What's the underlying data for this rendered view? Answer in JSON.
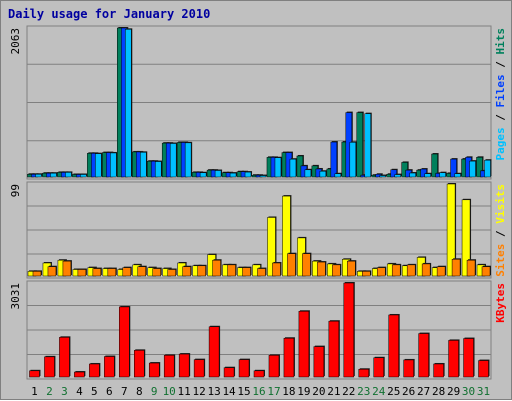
{
  "chart_data": {
    "type": "bar",
    "title": "Daily usage for January 2010",
    "categories": [
      "1",
      "2",
      "3",
      "4",
      "5",
      "6",
      "7",
      "8",
      "9",
      "10",
      "11",
      "12",
      "13",
      "14",
      "15",
      "16",
      "17",
      "18",
      "19",
      "20",
      "21",
      "22",
      "23",
      "24",
      "25",
      "26",
      "27",
      "28",
      "29",
      "30",
      "31"
    ],
    "weekend_days": [
      "2",
      "3",
      "9",
      "10",
      "16",
      "17",
      "23",
      "24",
      "30",
      "31"
    ],
    "colors": {
      "background": "#c0c0c0",
      "grid": "#808080",
      "title": "#0000a0",
      "weekday_label": "#000000",
      "weekend_label": "#107030",
      "hits": "#00805c",
      "files": "#0040ff",
      "pages": "#00c0ff",
      "visits": "#ffff00",
      "sites": "#ff8000",
      "kbytes": "#ff0000"
    },
    "panels": [
      {
        "id": "hits-files-pages",
        "max_label": "2063",
        "ylim": [
          0,
          2063
        ],
        "legend": [
          {
            "text": "Pages",
            "color": "#00c0ff"
          },
          {
            "text": " / ",
            "color": "#000000"
          },
          {
            "text": "Files",
            "color": "#0040ff"
          },
          {
            "text": " / ",
            "color": "#000000"
          },
          {
            "text": "Hits",
            "color": "#00805c"
          }
        ],
        "series": [
          {
            "name": "Hits",
            "color": "#00805c",
            "values": [
              38,
              53,
              64,
              35,
              328,
              338,
              2063,
              347,
              219,
              469,
              478,
              64,
              95,
              59,
              73,
              25,
              272,
              338,
              291,
              154,
              111,
              484,
              892,
              25,
              38,
              202,
              95,
              318,
              50,
              248,
              273
            ]
          },
          {
            "name": "Files",
            "color": "#0040ff",
            "values": [
              38,
              53,
              64,
              35,
              328,
              338,
              2063,
              347,
              219,
              469,
              478,
              64,
              95,
              59,
              73,
              25,
              272,
              338,
              154,
              111,
              484,
              892,
              25,
              38,
              100,
              95,
              110,
              50,
              248,
              273,
              85
            ]
          },
          {
            "name": "Pages",
            "color": "#00c0ff",
            "values": [
              38,
              53,
              64,
              35,
              323,
              333,
              2045,
              342,
              214,
              464,
              473,
              59,
              90,
              54,
              68,
              20,
              267,
              247,
              100,
              80,
              45,
              480,
              877,
              20,
              33,
              55,
              45,
              60,
              45,
              220,
              233
            ]
          }
        ]
      },
      {
        "id": "visits-sites",
        "max_label": "99",
        "ylim": [
          0,
          99
        ],
        "legend": [
          {
            "text": "Sites",
            "color": "#ff8000"
          },
          {
            "text": " / ",
            "color": "#000000"
          },
          {
            "text": "Visits",
            "color": "#ffff00"
          }
        ],
        "series": [
          {
            "name": "Visits",
            "color": "#ffff00",
            "values": [
              5,
              14,
              17,
              7,
              9,
              8,
              7,
              12,
              9,
              8,
              14,
              11,
              23,
              12,
              9,
              12,
              63,
              86,
              41,
              16,
              13,
              18,
              5,
              8,
              13,
              11,
              20,
              9,
              99,
              82,
              12
            ]
          },
          {
            "name": "Sites",
            "color": "#ff8000",
            "values": [
              5,
              10,
              16,
              7,
              8,
              8,
              9,
              10,
              8,
              7,
              10,
              11,
              17,
              12,
              9,
              8,
              14,
              24,
              24,
              15,
              12,
              16,
              5,
              9,
              12,
              12,
              13,
              10,
              18,
              17,
              10
            ]
          }
        ]
      },
      {
        "id": "kbytes",
        "max_label": "3031",
        "ylim": [
          0,
          3031
        ],
        "legend": [
          {
            "text": "KBytes",
            "color": "#ff0000"
          }
        ],
        "series": [
          {
            "name": "KBytes",
            "color": "#ff0000",
            "values": [
              200,
              650,
              1280,
              160,
              420,
              660,
              2260,
              860,
              450,
              700,
              740,
              560,
              1620,
              300,
              560,
              200,
              700,
              1250,
              2120,
              980,
              1800,
              3031,
              250,
              620,
              2000,
              550,
              1400,
              420,
              1180,
              1240,
              530
            ]
          }
        ]
      }
    ]
  }
}
